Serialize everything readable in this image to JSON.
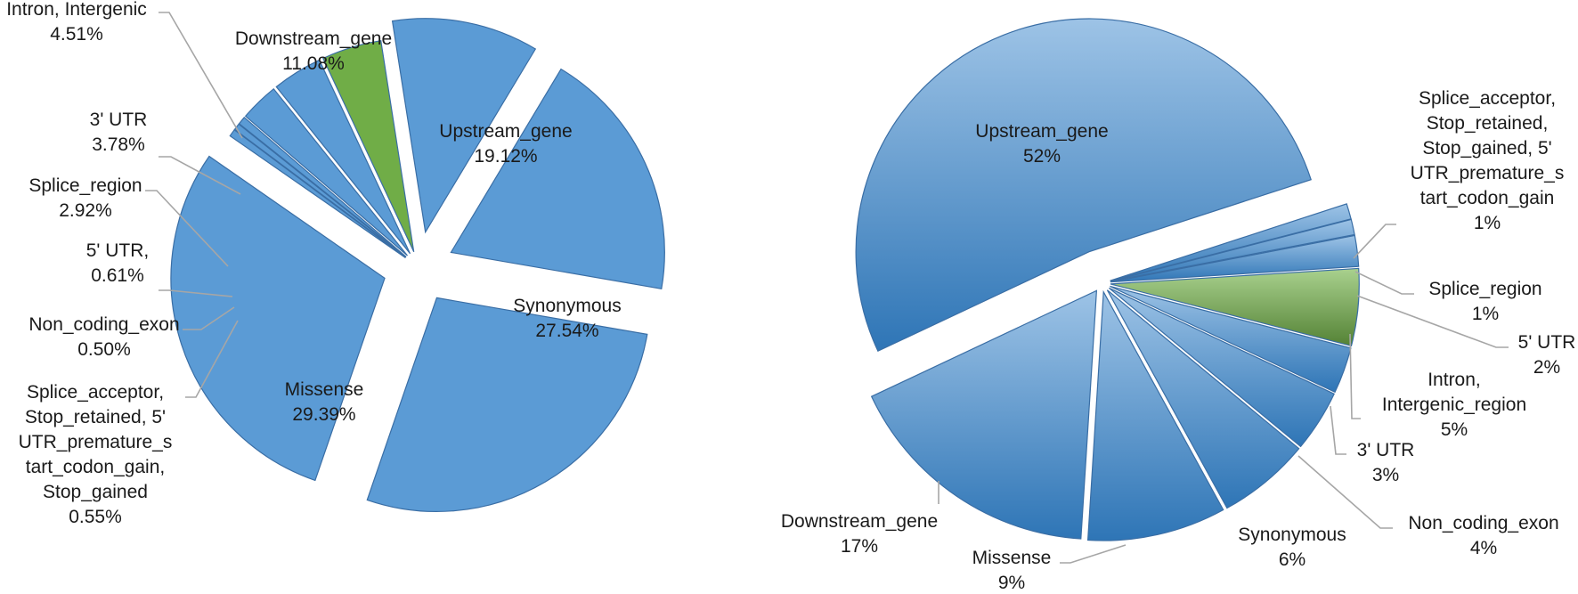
{
  "colors": {
    "blue": "#5b9bd5",
    "blue_light": "#9dc3e6",
    "blue_dark": "#2e75b6",
    "green": "#70ad47",
    "green_light": "#a9d18e",
    "green_dark": "#548235",
    "leader": "#a6a6a6"
  },
  "chart_data": [
    {
      "type": "pie",
      "title": "",
      "exploded": true,
      "highlight": "Intron, Intergenic",
      "slices": [
        {
          "name": "Upstream_gene",
          "value": 19.12,
          "pct_label": "19.12%"
        },
        {
          "name": "Synonymous",
          "value": 27.54,
          "pct_label": "27.54%"
        },
        {
          "name": "Missense",
          "value": 29.39,
          "pct_label": "29.39%"
        },
        {
          "name": "Splice_acceptor, Stop_retained, 5' UTR_premature_start_codon_gain, Stop_gained",
          "value": 0.55,
          "pct_label": "0.55%"
        },
        {
          "name": "Non_coding_exon",
          "value": 0.5,
          "pct_label": "0.50%"
        },
        {
          "name": "5' UTR,",
          "value": 0.61,
          "pct_label": "0.61%"
        },
        {
          "name": "Splice_region",
          "value": 2.92,
          "pct_label": "2.92%"
        },
        {
          "name": "3' UTR",
          "value": 3.78,
          "pct_label": "3.78%"
        },
        {
          "name": "Intron, Intergenic",
          "value": 4.51,
          "pct_label": "4.51%"
        },
        {
          "name": "Downstream_gene",
          "value": 11.08,
          "pct_label": "11.08%"
        }
      ]
    },
    {
      "type": "pie",
      "title": "",
      "exploded": true,
      "highlight": "Intron, Intergenic_region",
      "slices": [
        {
          "name": "Splice_acceptor, Stop_retained, Stop_gained, 5' UTR_premature_start_codon_gain",
          "value": 1,
          "pct_label": "1%"
        },
        {
          "name": "Splice_region",
          "value": 1,
          "pct_label": "1%"
        },
        {
          "name": "5' UTR",
          "value": 2,
          "pct_label": "2%"
        },
        {
          "name": "Intron, Intergenic_region",
          "value": 5,
          "pct_label": "5%"
        },
        {
          "name": "3' UTR",
          "value": 3,
          "pct_label": "3%"
        },
        {
          "name": "Non_coding_exon",
          "value": 4,
          "pct_label": "4%"
        },
        {
          "name": "Synonymous",
          "value": 6,
          "pct_label": "6%"
        },
        {
          "name": "Missense",
          "value": 9,
          "pct_label": "9%"
        },
        {
          "name": "Downstream_gene",
          "value": 17,
          "pct_label": "17%"
        },
        {
          "name": "Upstream_gene",
          "value": 52,
          "pct_label": "52%"
        }
      ]
    }
  ]
}
